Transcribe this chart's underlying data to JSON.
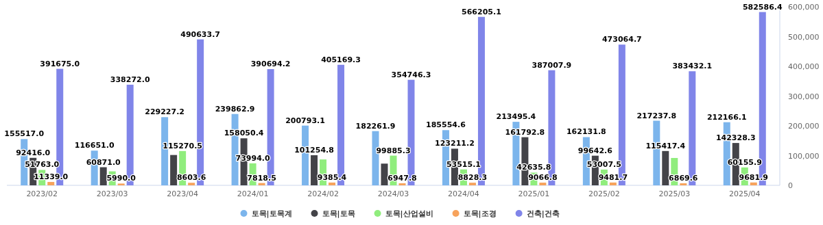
{
  "chart_data": {
    "type": "bar",
    "categories": [
      "2023/02",
      "2023/03",
      "2023/04",
      "2024/01",
      "2024/02",
      "2024/03",
      "2024/04",
      "2025/01",
      "2025/02",
      "2025/03",
      "2025/04"
    ],
    "series": [
      {
        "name": "토목|토목계",
        "color": "#7cb5ec",
        "values": [
          155517.0,
          116651.0,
          229227.2,
          239862.9,
          200793.1,
          182261.9,
          185554.6,
          213495.4,
          162131.8,
          217237.8,
          212166.1
        ],
        "value_labels": [
          "155517.0",
          "116651.0",
          "229227.2",
          "239862.9",
          "200793.1",
          "182261.9",
          "185554.6",
          "213495.4",
          "162131.8",
          "217237.8",
          "212166.1"
        ]
      },
      {
        "name": "토목|토목",
        "color": "#434348",
        "values": [
          92416.0,
          60871.0,
          102000,
          158050.4,
          101254.8,
          73000,
          123211.2,
          161792.8,
          99642.6,
          115417.4,
          142328.3
        ],
        "value_labels": [
          "92416.0",
          "60871.0",
          null,
          "158050.4",
          "101254.8",
          null,
          "123211.2",
          "161792.8",
          "99642.6",
          "115417.4",
          "142328.3"
        ]
      },
      {
        "name": "토목|산업설비",
        "color": "#90ed7d",
        "values": [
          51763.0,
          47000,
          115270.5,
          73994.0,
          87000,
          99885.3,
          53515.1,
          42635.8,
          53007.5,
          92000,
          60155.9
        ],
        "value_labels": [
          "51763.0",
          null,
          "115270.5",
          "73994.0",
          null,
          "99885.3",
          "53515.1",
          "42635.8",
          "53007.5",
          null,
          "60155.9"
        ]
      },
      {
        "name": "토목|조경",
        "color": "#f7a35c",
        "values": [
          11339.0,
          5990.0,
          8603.6,
          7818.5,
          9385.4,
          6947.8,
          8828.3,
          9066.8,
          9481.7,
          6869.6,
          9681.9
        ],
        "value_labels": [
          "11339.0",
          "5990.0",
          "8603.6",
          "7818.5",
          "9385.4",
          "6947.8",
          "8828.3",
          "9066.8",
          "9481.7",
          "6869.6",
          "9681.9"
        ]
      },
      {
        "name": "건축|건축",
        "color": "#8085e9",
        "values": [
          391675.0,
          338272.0,
          490633.7,
          390694.2,
          405169.3,
          354746.3,
          566205.1,
          387007.9,
          473064.7,
          383432.1,
          582586.4
        ],
        "value_labels": [
          "391675.0",
          "338272.0",
          "490633.7",
          "390694.2",
          "405169.3",
          "354746.3",
          "566205.1",
          "387007.9",
          "473064.7",
          "383432.1",
          "582586.4"
        ]
      }
    ],
    "ylim": [
      0,
      600000
    ],
    "yticks": [
      {
        "value": 0,
        "label": "0"
      },
      {
        "value": 100000,
        "label": "100,000"
      },
      {
        "value": 200000,
        "label": "200,000"
      },
      {
        "value": 300000,
        "label": "300,000"
      },
      {
        "value": 400000,
        "label": "400,000"
      },
      {
        "value": 500000,
        "label": "500,000"
      },
      {
        "value": 600000,
        "label": "600,000"
      }
    ],
    "legend": "bottom",
    "marker": "circle"
  }
}
